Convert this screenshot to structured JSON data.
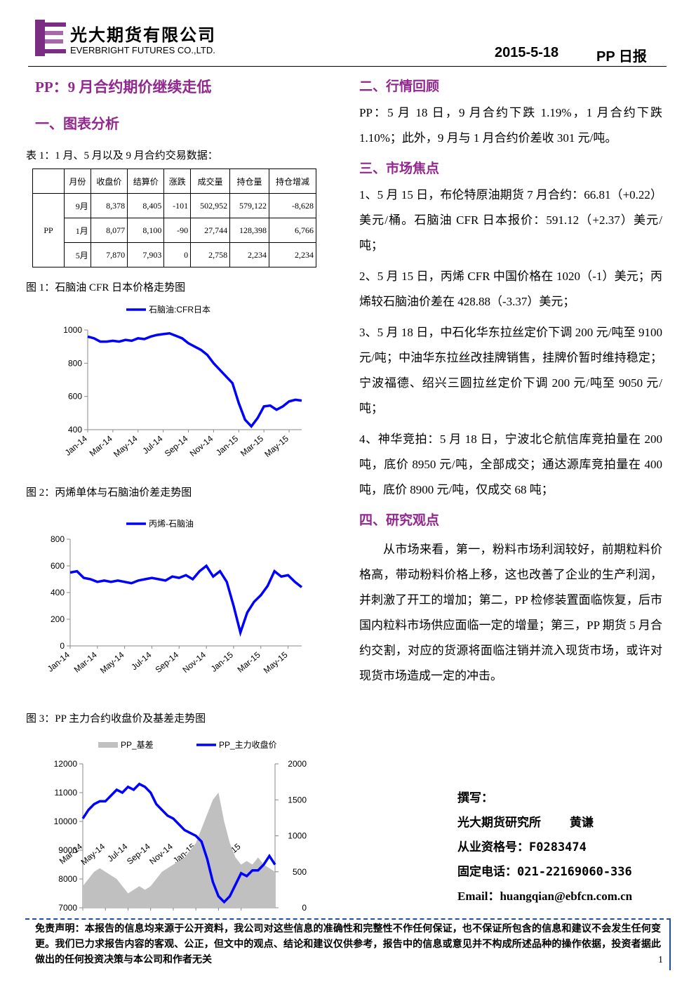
{
  "header": {
    "company_cn": "光大期货有限公司",
    "company_en": "EVERBRIGHT FUTURES CO.,LTD.",
    "date": "2015-5-18",
    "report": "PP 日报"
  },
  "left": {
    "headline": "PP：9 月合约期价继续走低",
    "section": "一、图表分析",
    "table_caption": "表 1：1 月、5 月以及 9 月合约交易数据：",
    "table": {
      "columns": [
        "月份",
        "收盘价",
        "结算价",
        "涨跌",
        "成交量",
        "持仓量",
        "持仓增减"
      ],
      "group": "PP",
      "rows": [
        [
          "9月",
          "8,378",
          "8,405",
          "-101",
          "502,952",
          "579,122",
          "-8,628"
        ],
        [
          "1月",
          "8,077",
          "8,100",
          "-90",
          "27,744",
          "128,398",
          "6,766"
        ],
        [
          "5月",
          "7,870",
          "7,903",
          "0",
          "2,758",
          "2,234",
          "2,234"
        ]
      ]
    }
  },
  "chart_data": [
    {
      "type": "line",
      "title": "图 1：石脑油 CFR 日本价格走势图",
      "categories": [
        "Jan-14",
        null,
        null,
        null,
        "Mar-14",
        null,
        null,
        null,
        "May-14",
        null,
        null,
        null,
        "Jul-14",
        null,
        null,
        null,
        "Sep-14",
        null,
        null,
        null,
        "Nov-14",
        null,
        null,
        null,
        "Jan-15",
        null,
        null,
        null,
        "Mar-15",
        null,
        null,
        null,
        "May-15",
        null,
        null
      ],
      "series": [
        {
          "name": "石脑油:CFR日本",
          "color": "#0000ff",
          "values": [
            960,
            950,
            930,
            930,
            935,
            930,
            940,
            935,
            950,
            945,
            960,
            970,
            975,
            980,
            965,
            950,
            920,
            900,
            880,
            850,
            800,
            760,
            720,
            680,
            560,
            460,
            420,
            470,
            540,
            545,
            520,
            540,
            570,
            580,
            575
          ]
        }
      ],
      "ylim": [
        400,
        1000
      ],
      "yticks": [
        400,
        600,
        800,
        1000
      ]
    },
    {
      "type": "line",
      "title": "图 2：丙烯单体与石脑油价差走势图",
      "categories": [
        "Jan-14",
        null,
        null,
        null,
        "Mar-14",
        null,
        null,
        null,
        "May-14",
        null,
        null,
        null,
        "Jul-14",
        null,
        null,
        null,
        "Sep-14",
        null,
        null,
        null,
        "Nov-14",
        null,
        null,
        null,
        "Jan-15",
        null,
        null,
        null,
        "Mar-15",
        null,
        null,
        null,
        "May-15",
        null,
        null
      ],
      "series": [
        {
          "name": "丙烯-石脑油",
          "color": "#0000ff",
          "values": [
            550,
            560,
            510,
            500,
            480,
            490,
            480,
            490,
            480,
            470,
            490,
            500,
            510,
            500,
            490,
            520,
            510,
            530,
            500,
            560,
            600,
            520,
            560,
            480,
            300,
            100,
            250,
            330,
            380,
            450,
            560,
            520,
            530,
            480,
            440
          ]
        }
      ],
      "ylim": [
        0,
        800
      ],
      "yticks": [
        0,
        200,
        400,
        600,
        800
      ]
    },
    {
      "type": "combo",
      "title": "图 3：PP 主力合约收盘价及基差走势图",
      "categories": [
        "Mar-14",
        null,
        null,
        null,
        "May-14",
        null,
        null,
        null,
        "Jul-14",
        null,
        null,
        null,
        "Sep-14",
        null,
        null,
        null,
        "Nov-14",
        null,
        null,
        null,
        "Jan-15",
        null,
        null,
        null,
        "Mar-15",
        null,
        null,
        null,
        "May-15",
        null,
        null,
        null,
        null,
        null,
        null
      ],
      "series": [
        {
          "name": "PP_基差",
          "color": "#c0c0c0",
          "type": "area",
          "axis": "y2",
          "values": [
            300,
            400,
            500,
            550,
            500,
            450,
            400,
            300,
            200,
            250,
            300,
            250,
            300,
            400,
            500,
            550,
            600,
            650,
            700,
            800,
            900,
            1100,
            1300,
            1500,
            1600,
            1200,
            900,
            700,
            600,
            650,
            600,
            700,
            600,
            550,
            500
          ]
        },
        {
          "name": "PP_主力收盘价",
          "color": "#0000ff",
          "type": "line",
          "values": [
            10100,
            10400,
            10600,
            10700,
            10700,
            10900,
            11100,
            11000,
            11200,
            11100,
            11300,
            11200,
            11000,
            10600,
            10400,
            10200,
            10100,
            9900,
            9700,
            9600,
            9500,
            9300,
            8700,
            7900,
            7400,
            7200,
            7400,
            7800,
            8200,
            8100,
            8300,
            8300,
            8500,
            8800,
            8500
          ]
        }
      ],
      "ylim": [
        7000,
        12000
      ],
      "yticks": [
        7000,
        8000,
        9000,
        10000,
        11000,
        12000
      ],
      "y2lim": [
        0,
        2000
      ],
      "y2ticks": [
        0,
        500,
        1000,
        1500,
        2000
      ]
    }
  ],
  "right": {
    "sections": [
      {
        "title": "二、行情回顾",
        "paragraphs": [
          "PP：5 月 18 日，9 月合约下跌 1.19%，1 月合约下跌 1.10%；此外，9 月与 1 月合约价差收 301 元/吨。"
        ]
      },
      {
        "title": "三、市场焦点",
        "paragraphs": [
          "1、5 月 15 日，布伦特原油期货 7 月合约：66.81（+0.22）美元/桶。石脑油 CFR 日本报价：591.12（+2.37）美元/吨；",
          "2、5 月 15 日，丙烯 CFR 中国价格在 1020（-1）美元；丙烯较石脑油价差在 428.88（-3.37）美元；",
          "3、5 月 18 日，中石化华东拉丝定价下调 200 元/吨至 9100 元/吨；中油华东拉丝改挂牌销售，挂牌价暂时维持稳定；宁波福德、绍兴三圆拉丝定价下调 200 元/吨至 9050 元/吨；",
          "4、神华竞拍：5 月 18 日，宁波北仑航信库竞拍量在 200 吨，底价 8950 元/吨，全部成交；通达源库竞拍量在 400 吨，底价 8900 元/吨，仅成交 68 吨；"
        ]
      },
      {
        "title": "四、研究观点",
        "paragraphs": [
          "从市场来看，第一，粉料市场利润较好，前期粒料价格高，带动粉料价格上移，这也改善了企业的生产利润，并刺激了开工的增加；第二，PP 检修装置面临恢复，后市国内粒料市场供应面临一定的增量；第三，PP 期货 5 月合约交割，对应的货源将面临注销并流入现货市场，或许对现货市场造成一定的冲击。"
        ]
      }
    ]
  },
  "author": {
    "label": "撰写：",
    "org": "光大期货研究所",
    "name": "黄谦",
    "cert": "从业资格号：F0283474",
    "phone": "固定电话：021-22169060-336",
    "email": "Email：huangqian@ebfcn.com.cn"
  },
  "disclaimer": "免责声明：本报告的信息均来源于公开资料，我公司对这些信息的准确性和完整性不作任何保证，也不保证所包含的信息和建议不会发生任何变更。我们已力求报告内容的客观、公正，但文中的观点、结论和建议仅供参考，报告中的信息或意见并不构成所述品种的操作依据，投资者据此做出的任何投资决策与本公司和作者无关",
  "page": "1"
}
